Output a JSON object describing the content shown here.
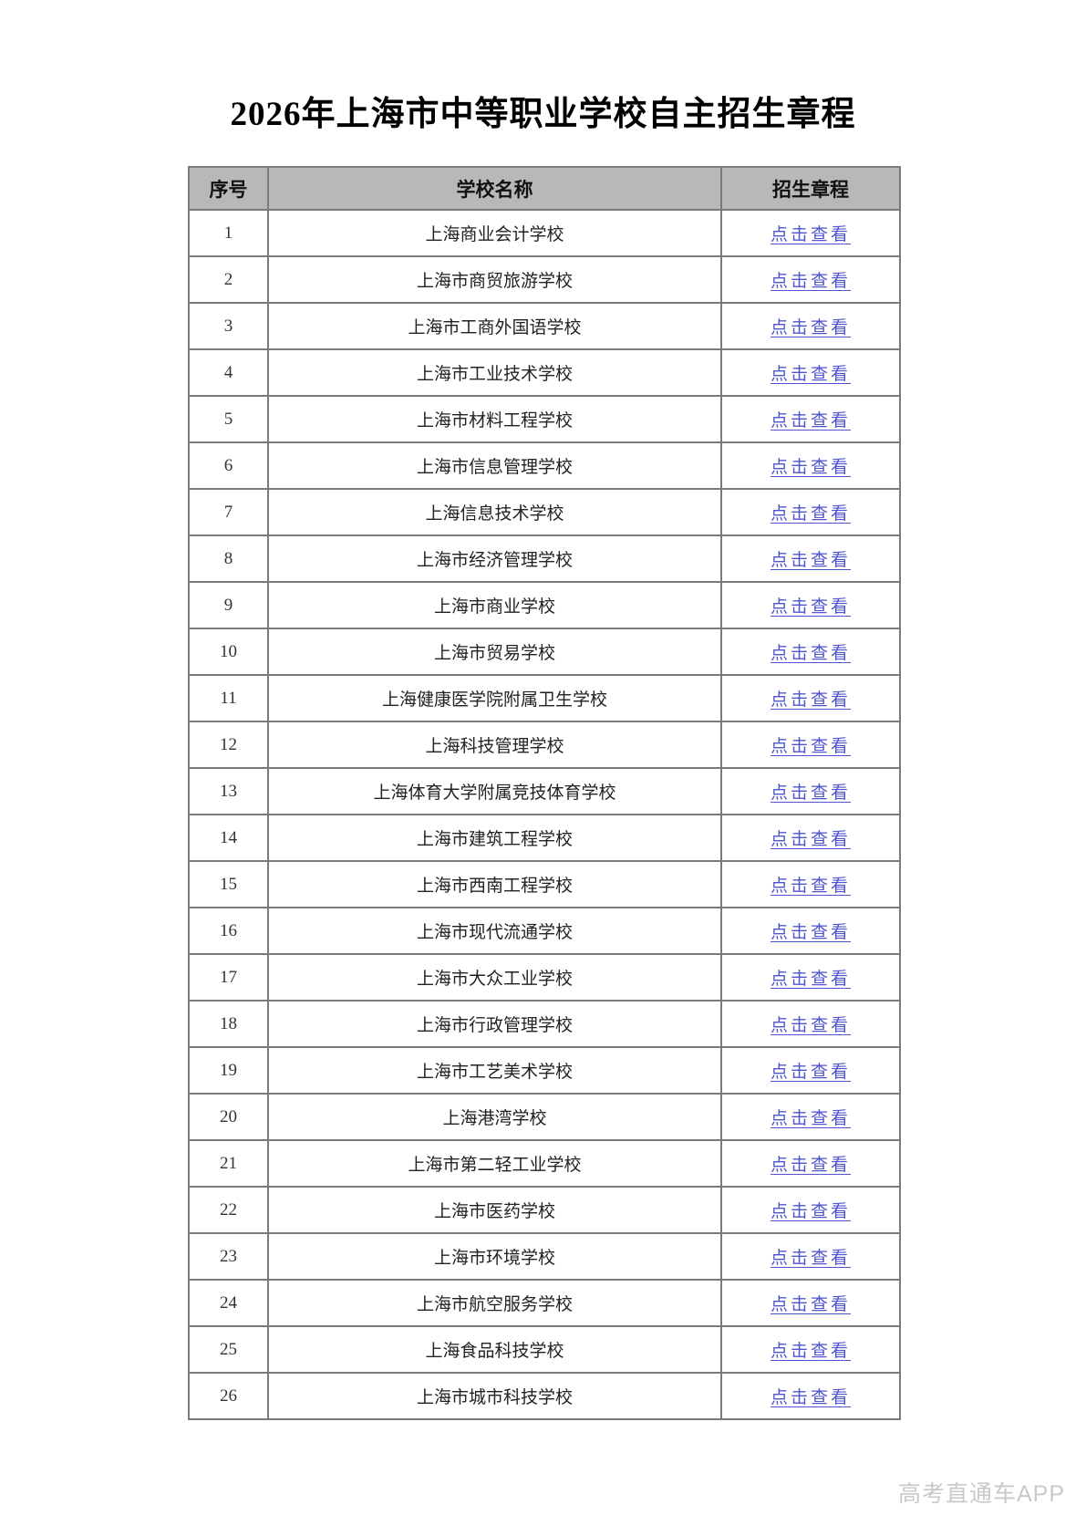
{
  "page": {
    "title": "2026年上海市中等职业学校自主招生章程",
    "watermark": "高考直通车APP"
  },
  "colors": {
    "header_bg": "#b8b8b8",
    "border": "#7a7a7a",
    "link": "#4f55cc",
    "watermark": "#c9c9c9"
  },
  "table": {
    "headers": [
      "序号",
      "学校名称",
      "招生章程"
    ],
    "link_label": "点击查看",
    "rows": [
      {
        "no": "1",
        "school": "上海商业会计学校"
      },
      {
        "no": "2",
        "school": "上海市商贸旅游学校"
      },
      {
        "no": "3",
        "school": "上海市工商外国语学校"
      },
      {
        "no": "4",
        "school": "上海市工业技术学校"
      },
      {
        "no": "5",
        "school": "上海市材料工程学校"
      },
      {
        "no": "6",
        "school": "上海市信息管理学校"
      },
      {
        "no": "7",
        "school": "上海信息技术学校"
      },
      {
        "no": "8",
        "school": "上海市经济管理学校"
      },
      {
        "no": "9",
        "school": "上海市商业学校"
      },
      {
        "no": "10",
        "school": "上海市贸易学校"
      },
      {
        "no": "11",
        "school": "上海健康医学院附属卫生学校"
      },
      {
        "no": "12",
        "school": "上海科技管理学校"
      },
      {
        "no": "13",
        "school": "上海体育大学附属竞技体育学校"
      },
      {
        "no": "14",
        "school": "上海市建筑工程学校"
      },
      {
        "no": "15",
        "school": "上海市西南工程学校"
      },
      {
        "no": "16",
        "school": "上海市现代流通学校"
      },
      {
        "no": "17",
        "school": "上海市大众工业学校"
      },
      {
        "no": "18",
        "school": "上海市行政管理学校"
      },
      {
        "no": "19",
        "school": "上海市工艺美术学校"
      },
      {
        "no": "20",
        "school": "上海港湾学校"
      },
      {
        "no": "21",
        "school": "上海市第二轻工业学校"
      },
      {
        "no": "22",
        "school": "上海市医药学校"
      },
      {
        "no": "23",
        "school": "上海市环境学校"
      },
      {
        "no": "24",
        "school": "上海市航空服务学校"
      },
      {
        "no": "25",
        "school": "上海食品科技学校"
      },
      {
        "no": "26",
        "school": "上海市城市科技学校"
      }
    ]
  }
}
